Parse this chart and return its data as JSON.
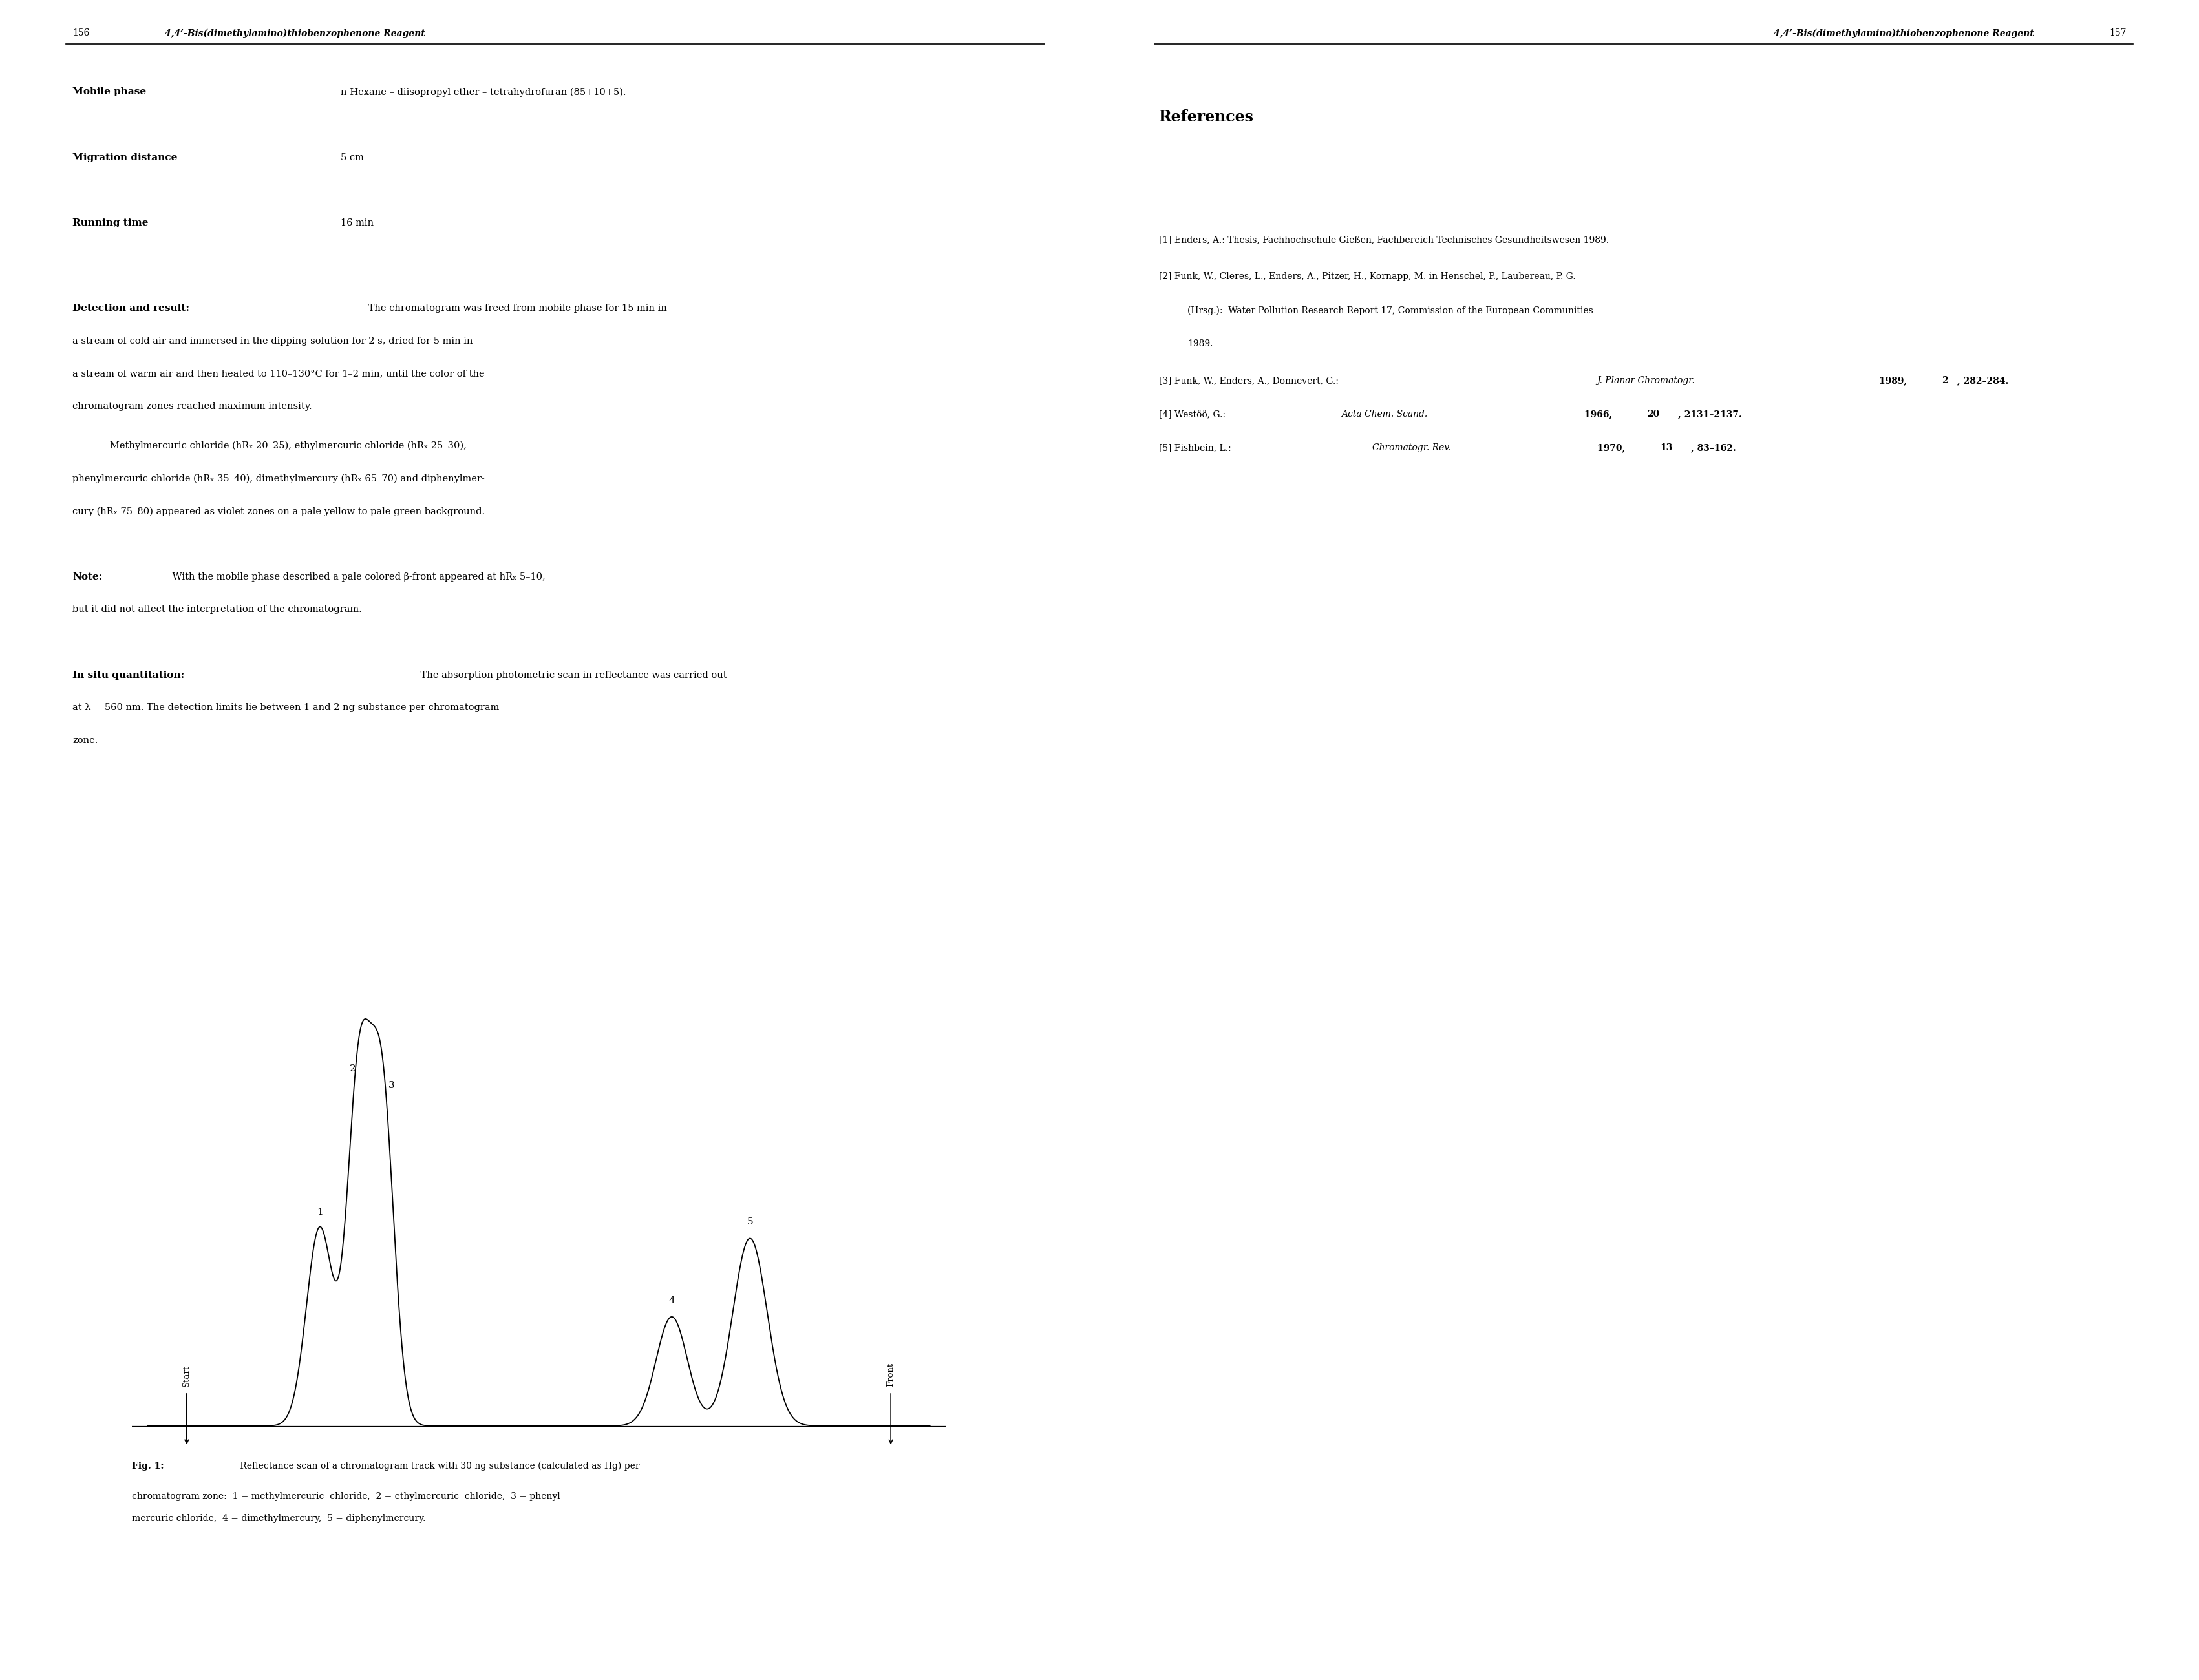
{
  "bg_color": "#ffffff",
  "page_width": 34.02,
  "page_height": 26.0,
  "left_header_num": "156",
  "left_header_title": "4,4’-Bis(dimethylamino)thiobenzophenone Reagent",
  "right_header_num": "157",
  "right_header_title": "4,4’-Bis(dimethylamino)thiobenzophenone Reagent",
  "mobile_phase_label": "Mobile phase",
  "mobile_phase_text": "n-Hexane – diisopropyl ether – tetrahydrofuran (85+10+5).",
  "migration_label": "Migration distance",
  "migration_text": "5 cm",
  "running_label": "Running time",
  "running_text": "16 min",
  "references_title": "References",
  "ref1": "[1] Enders, A.: Thesis, Fachhochschule Gießen, Fachbereich Technisches Gesundheitswesen 1989.",
  "ref2a": "[2] Funk, W., Cleres, L., Enders, A., Pitzer, H., Kornapp, M. in Henschel, P., Laubereau, P. G.",
  "ref2b": "    (Hrsg.): Water Pollution Research Report 17, Commission of the European Communities",
  "ref2c": "    1989.",
  "ref3": "[3] Funk, W., Enders, A., Donnevert, G.: J. Planar Chromatogr. 1989, 2, 282–284.",
  "ref4": "[4] Westöö, G.: Acta Chem. Scand. 1966, 20, 2131–2137.",
  "ref5": "[5] Fishbein, L.: Chromatogr. Rev. 1970, 13, 83–162."
}
